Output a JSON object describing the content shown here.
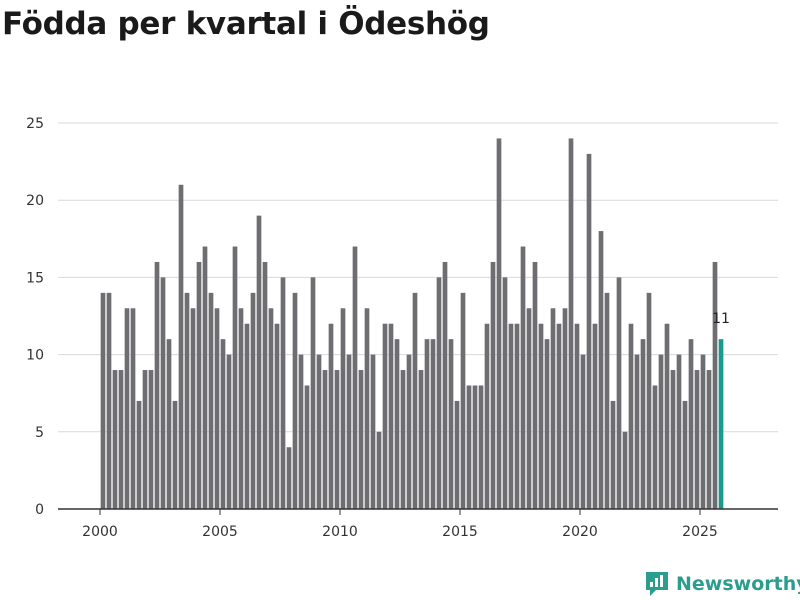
{
  "title": "Födda per kvartal i Ödeshög",
  "brand": {
    "name": "Newsworthy",
    "icon": "newsworthy-logo-icon",
    "color": "#2a9d8f"
  },
  "colors": {
    "bar": "#6e6d72",
    "highlight": "#1a9a8c",
    "grid": "#d9d9d9",
    "axis": "#333333"
  },
  "chart_data": {
    "type": "bar",
    "title": "Födda per kvartal i Ödeshög",
    "xlabel": "",
    "ylabel": "",
    "ylim": [
      0,
      25
    ],
    "yticks": [
      0,
      5,
      10,
      15,
      20,
      25
    ],
    "xlim": [
      1998.25,
      2028.25
    ],
    "xticks": [
      2000,
      2005,
      2010,
      2015,
      2020,
      2025
    ],
    "start": {
      "year": 2000,
      "quarter": 1
    },
    "values": [
      14,
      14,
      9,
      9,
      13,
      13,
      7,
      9,
      9,
      16,
      15,
      11,
      7,
      21,
      14,
      13,
      16,
      17,
      14,
      13,
      11,
      10,
      17,
      13,
      12,
      14,
      19,
      16,
      13,
      12,
      15,
      4,
      14,
      10,
      8,
      15,
      10,
      9,
      12,
      9,
      13,
      10,
      17,
      9,
      13,
      10,
      5,
      12,
      12,
      11,
      9,
      10,
      14,
      9,
      11,
      11,
      15,
      16,
      11,
      7,
      14,
      8,
      8,
      8,
      12,
      16,
      24,
      15,
      12,
      12,
      17,
      13,
      16,
      12,
      11,
      13,
      12,
      13,
      24,
      12,
      10,
      23,
      12,
      18,
      14,
      7,
      15,
      5,
      12,
      10,
      11,
      14,
      8,
      10,
      12,
      9,
      10,
      7,
      11,
      9,
      10,
      9,
      16,
      11
    ],
    "highlight_index": 103,
    "highlight_label": "11"
  }
}
